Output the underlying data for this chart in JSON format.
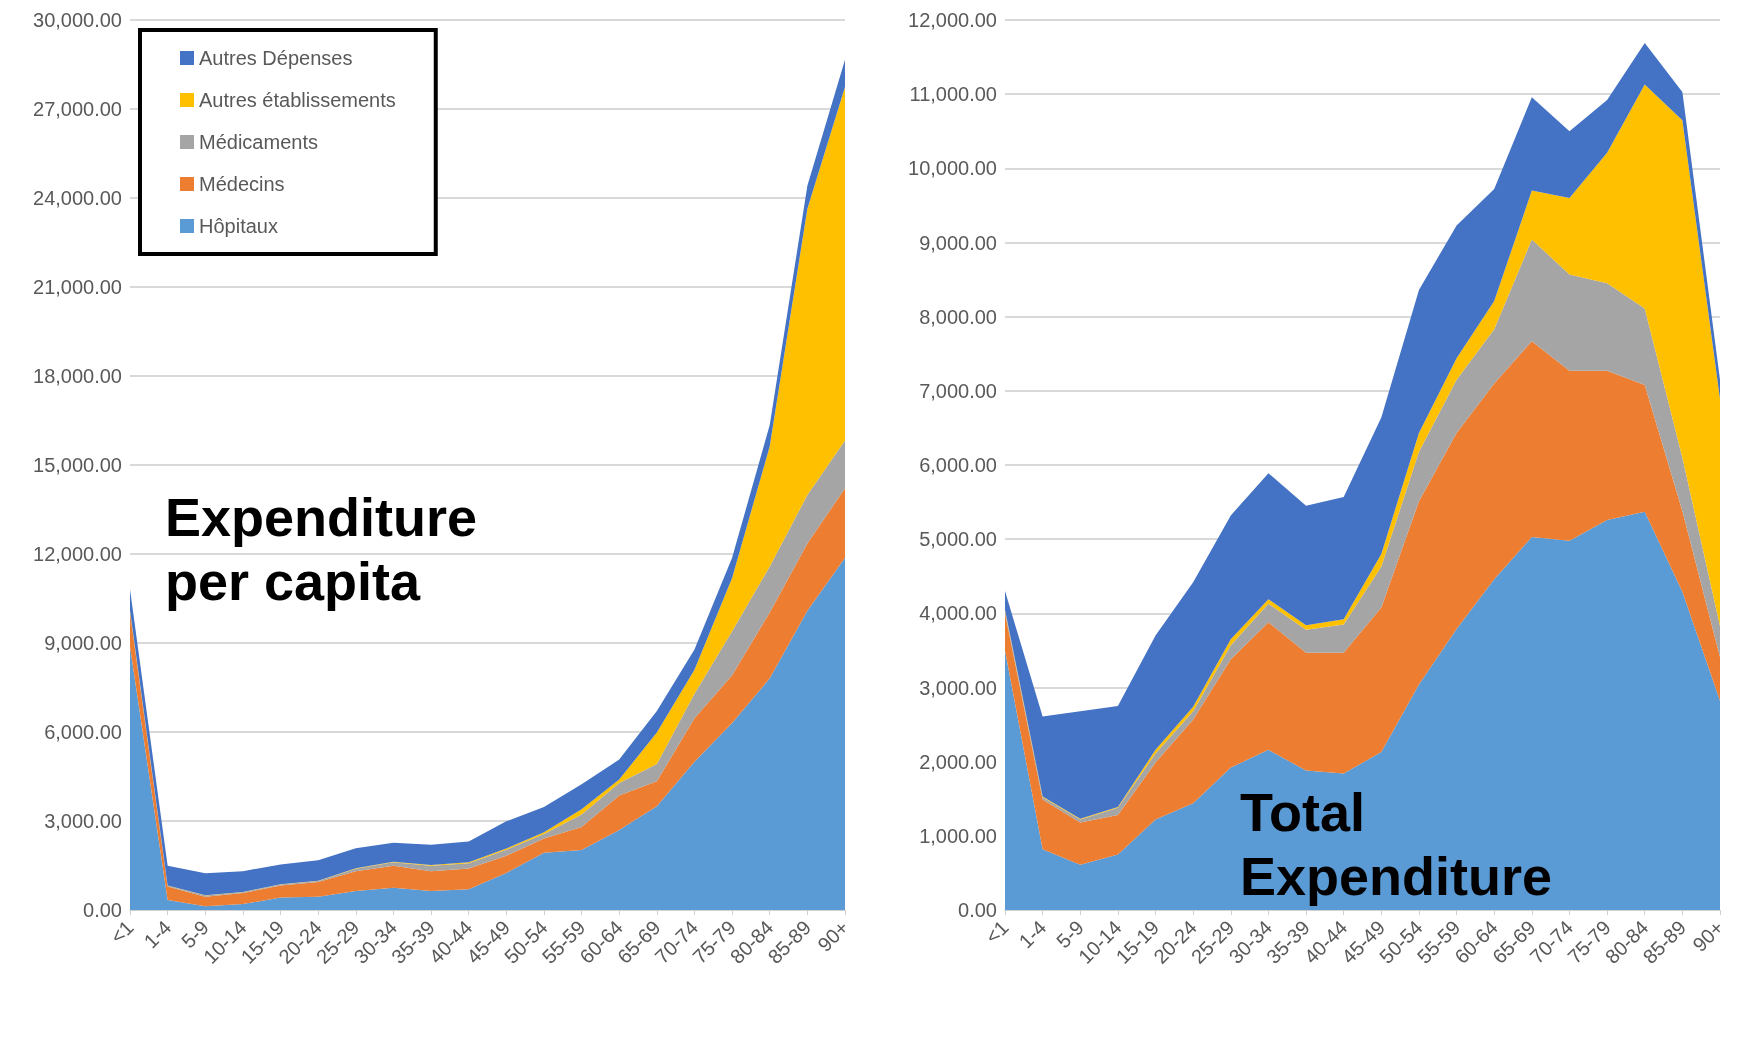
{
  "chart_data": [
    {
      "type": "area",
      "title": "Expenditure per capita",
      "stacked": true,
      "grid": "y",
      "legend": "top left",
      "marker": "none",
      "categories": [
        "<1",
        "1-4",
        "5-9",
        "10-14",
        "15-19",
        "20-24",
        "25-29",
        "30-34",
        "35-39",
        "40-44",
        "45-49",
        "50-54",
        "55-59",
        "60-64",
        "65-69",
        "70-74",
        "75-79",
        "80-84",
        "85-89",
        "90+"
      ],
      "ylim": [
        0,
        30000
      ],
      "yticks": [
        {
          "value": 0,
          "label": "0.00"
        },
        {
          "value": 3000,
          "label": "3,000.00"
        },
        {
          "value": 6000,
          "label": "6,000.00"
        },
        {
          "value": 9000,
          "label": "9,000.00"
        },
        {
          "value": 12000,
          "label": "12,000.00"
        },
        {
          "value": 15000,
          "label": "15,000.00"
        },
        {
          "value": 18000,
          "label": "18,000.00"
        },
        {
          "value": 21000,
          "label": "21,000.00"
        },
        {
          "value": 24000,
          "label": "24,000.00"
        },
        {
          "value": 27000,
          "label": "27,000.00"
        },
        {
          "value": 30000,
          "label": "30,000.00"
        }
      ],
      "series": [
        {
          "name": "Hôpitaux",
          "color": "#5b9bd5",
          "values": [
            8880,
            340,
            130,
            200,
            420,
            450,
            640,
            750,
            640,
            700,
            1250,
            1930,
            2020,
            2700,
            3500,
            5000,
            6300,
            7810,
            10090,
            11870
          ]
        },
        {
          "name": "Médecins",
          "color": "#ed7d31",
          "values": [
            1150,
            450,
            320,
            370,
            410,
            490,
            670,
            740,
            670,
            700,
            580,
            480,
            780,
            1160,
            840,
            1460,
            1610,
            2220,
            2260,
            2350
          ]
        },
        {
          "name": "Médicaments",
          "color": "#a5a5a5",
          "values": [
            40,
            30,
            40,
            30,
            30,
            40,
            80,
            120,
            180,
            180,
            200,
            150,
            420,
            420,
            580,
            830,
            1490,
            1550,
            1640,
            1610
          ]
        },
        {
          "name": "Autres établissements",
          "color": "#ffc000",
          "values": [
            30,
            10,
            10,
            10,
            10,
            10,
            20,
            20,
            30,
            30,
            40,
            60,
            180,
            120,
            1060,
            810,
            1790,
            4050,
            9650,
            11910
          ]
        },
        {
          "name": "Autres Dépenses",
          "color": "#4472c4",
          "values": [
            710,
            660,
            740,
            700,
            660,
            690,
            670,
            640,
            680,
            700,
            920,
            850,
            840,
            670,
            730,
            680,
            680,
            720,
            770,
            920
          ]
        }
      ]
    },
    {
      "type": "area",
      "title": "Total Expenditure",
      "stacked": true,
      "grid": "y",
      "marker": "none",
      "categories": [
        "<1",
        "1-4",
        "5-9",
        "10-14",
        "15-19",
        "20-24",
        "25-29",
        "30-34",
        "35-39",
        "40-44",
        "45-49",
        "50-54",
        "55-59",
        "60-64",
        "65-69",
        "70-74",
        "75-79",
        "80-84",
        "85-89",
        "90+"
      ],
      "ylim": [
        0,
        12000
      ],
      "yticks": [
        {
          "value": 0,
          "label": "0.00"
        },
        {
          "value": 1000,
          "label": "1,000.00"
        },
        {
          "value": 2000,
          "label": "2,000.00"
        },
        {
          "value": 3000,
          "label": "3,000.00"
        },
        {
          "value": 4000,
          "label": "4,000.00"
        },
        {
          "value": 5000,
          "label": "5,000.00"
        },
        {
          "value": 6000,
          "label": "6,000.00"
        },
        {
          "value": 7000,
          "label": "7,000.00"
        },
        {
          "value": 8000,
          "label": "8,000.00"
        },
        {
          "value": 9000,
          "label": "9,000.00"
        },
        {
          "value": 10000,
          "label": "10,000.00"
        },
        {
          "value": 11000,
          "label": "11,000.00"
        },
        {
          "value": 12000,
          "label": "12,000.00"
        }
      ],
      "series": [
        {
          "color": "#5b9bd5",
          "values": [
            3500,
            820,
            610,
            750,
            1220,
            1440,
            1920,
            2160,
            1880,
            1840,
            2130,
            3040,
            3790,
            4460,
            5030,
            4980,
            5260,
            5370,
            4290,
            2820
          ]
        },
        {
          "color": "#ed7d31",
          "values": [
            500,
            670,
            570,
            530,
            770,
            1130,
            1460,
            1720,
            1590,
            1630,
            1950,
            2470,
            2640,
            2640,
            2640,
            2290,
            2010,
            1710,
            1090,
            590
          ]
        },
        {
          "color": "#a5a5a5",
          "values": [
            30,
            30,
            40,
            100,
            120,
            110,
            190,
            250,
            310,
            380,
            550,
            670,
            720,
            730,
            1370,
            1300,
            1180,
            1030,
            720,
            420
          ]
        },
        {
          "color": "#ffc000",
          "values": [
            20,
            10,
            10,
            10,
            50,
            60,
            80,
            60,
            60,
            70,
            170,
            250,
            290,
            380,
            660,
            1030,
            1760,
            3020,
            4550,
            3060
          ]
        },
        {
          "color": "#4472c4",
          "values": [
            250,
            1080,
            1450,
            1360,
            1540,
            1680,
            1670,
            1700,
            1610,
            1650,
            1840,
            1930,
            1790,
            1510,
            1260,
            900,
            710,
            560,
            380,
            260
          ]
        }
      ]
    }
  ]
}
